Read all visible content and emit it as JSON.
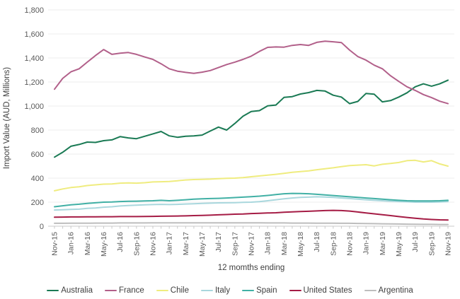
{
  "figure": {
    "x_axis_title": "12 momths ending",
    "y_axis_title": "Import Value (AUD, Millions)"
  },
  "chart_data": {
    "type": "line",
    "title": "",
    "xlabel": "12 momths ending",
    "ylabel": "Import Value (AUD, Millions)",
    "ylim": [
      0,
      1800
    ],
    "y_ticks": [
      0,
      200,
      400,
      600,
      800,
      1000,
      1200,
      1400,
      1600,
      1800
    ],
    "grid": "horizontal",
    "legend_position": "bottom",
    "x_tick_every": 2,
    "x": [
      "Nov-15",
      "Dec-15",
      "Jan-16",
      "Feb-16",
      "Mar-16",
      "Apr-16",
      "May-16",
      "Jun-16",
      "Jul-16",
      "Aug-16",
      "Sep-16",
      "Oct-16",
      "Nov-16",
      "Dec-16",
      "Jan-17",
      "Feb-17",
      "Mar-17",
      "Apr-17",
      "May-17",
      "Jun-17",
      "Jul-17",
      "Aug-17",
      "Sep-17",
      "Oct-17",
      "Nov-17",
      "Dec-17",
      "Jan-18",
      "Feb-18",
      "Mar-18",
      "Apr-18",
      "May-18",
      "Jun-18",
      "Jul-18",
      "Aug-18",
      "Sep-18",
      "Oct-18",
      "Nov-18",
      "Dec-18",
      "Jan-19",
      "Feb-19",
      "Mar-19",
      "Apr-19",
      "May-19",
      "Jun-19",
      "Jul-19",
      "Aug-19",
      "Sep-19",
      "Oct-19",
      "Nov-19"
    ],
    "series": [
      {
        "name": "Australia",
        "color": "#1a7a54",
        "values": [
          575,
          615,
          665,
          680,
          700,
          697,
          712,
          718,
          745,
          735,
          728,
          748,
          768,
          788,
          752,
          740,
          748,
          752,
          758,
          792,
          825,
          800,
          855,
          915,
          955,
          962,
          1002,
          1008,
          1072,
          1078,
          1100,
          1112,
          1130,
          1125,
          1090,
          1075,
          1020,
          1038,
          1105,
          1098,
          1035,
          1045,
          1075,
          1110,
          1160,
          1185,
          1165,
          1185,
          1215
        ]
      },
      {
        "name": "France",
        "color": "#b2608a",
        "values": [
          1140,
          1230,
          1285,
          1310,
          1365,
          1420,
          1470,
          1430,
          1440,
          1445,
          1430,
          1408,
          1388,
          1352,
          1310,
          1290,
          1280,
          1272,
          1282,
          1295,
          1320,
          1345,
          1365,
          1388,
          1415,
          1455,
          1488,
          1492,
          1490,
          1505,
          1512,
          1505,
          1530,
          1540,
          1535,
          1528,
          1465,
          1412,
          1382,
          1340,
          1310,
          1252,
          1205,
          1160,
          1130,
          1095,
          1070,
          1040,
          1020
        ]
      },
      {
        "name": "Chile",
        "color": "#efec7f",
        "values": [
          295,
          310,
          322,
          328,
          338,
          344,
          350,
          352,
          358,
          360,
          358,
          362,
          368,
          370,
          372,
          378,
          385,
          388,
          390,
          392,
          395,
          398,
          400,
          405,
          412,
          418,
          425,
          432,
          440,
          448,
          455,
          460,
          470,
          478,
          486,
          495,
          505,
          508,
          512,
          502,
          515,
          522,
          530,
          545,
          548,
          535,
          545,
          518,
          500
        ]
      },
      {
        "name": "Italy",
        "color": "#a9d7dd",
        "values": [
          135,
          137,
          140,
          142,
          148,
          152,
          158,
          162,
          168,
          172,
          175,
          178,
          180,
          182,
          180,
          182,
          185,
          187,
          190,
          192,
          194,
          195,
          196,
          198,
          200,
          204,
          212,
          220,
          228,
          235,
          240,
          242,
          245,
          243,
          240,
          235,
          230,
          225,
          220,
          215,
          212,
          208,
          205,
          203,
          200,
          200,
          200,
          202,
          205
        ]
      },
      {
        "name": "Spain",
        "color": "#41b0a5",
        "values": [
          162,
          170,
          178,
          183,
          190,
          195,
          200,
          202,
          205,
          207,
          208,
          210,
          212,
          215,
          212,
          215,
          220,
          225,
          228,
          230,
          232,
          235,
          238,
          242,
          246,
          250,
          256,
          263,
          270,
          273,
          272,
          270,
          265,
          260,
          255,
          250,
          245,
          240,
          235,
          230,
          225,
          220,
          215,
          212,
          210,
          210,
          210,
          212,
          215
        ]
      },
      {
        "name": "United States",
        "color": "#a51c45",
        "values": [
          75,
          76,
          77,
          77,
          78,
          78,
          79,
          79,
          80,
          80,
          80,
          81,
          82,
          83,
          84,
          85,
          86,
          88,
          90,
          92,
          95,
          97,
          100,
          102,
          105,
          107,
          110,
          112,
          116,
          119,
          122,
          124,
          127,
          130,
          132,
          130,
          126,
          118,
          110,
          103,
          96,
          88,
          80,
          73,
          66,
          60,
          56,
          53,
          52
        ]
      },
      {
        "name": "Argentina",
        "color": "#bdbdbd",
        "values": [
          24,
          24,
          25,
          25,
          25,
          26,
          26,
          26,
          27,
          27,
          27,
          27,
          28,
          28,
          28,
          28,
          28,
          28,
          28,
          28,
          28,
          28,
          28,
          28,
          28,
          28,
          27,
          27,
          27,
          26,
          26,
          26,
          25,
          25,
          25,
          24,
          24,
          23,
          22,
          21,
          20,
          19,
          18,
          17,
          16,
          15,
          15,
          14,
          14
        ]
      }
    ],
    "style": {
      "grid_color": "#ececec",
      "axis_color": "#c9c9c9",
      "tick_label_color": "#595959",
      "axis_title_color": "#404040"
    }
  }
}
